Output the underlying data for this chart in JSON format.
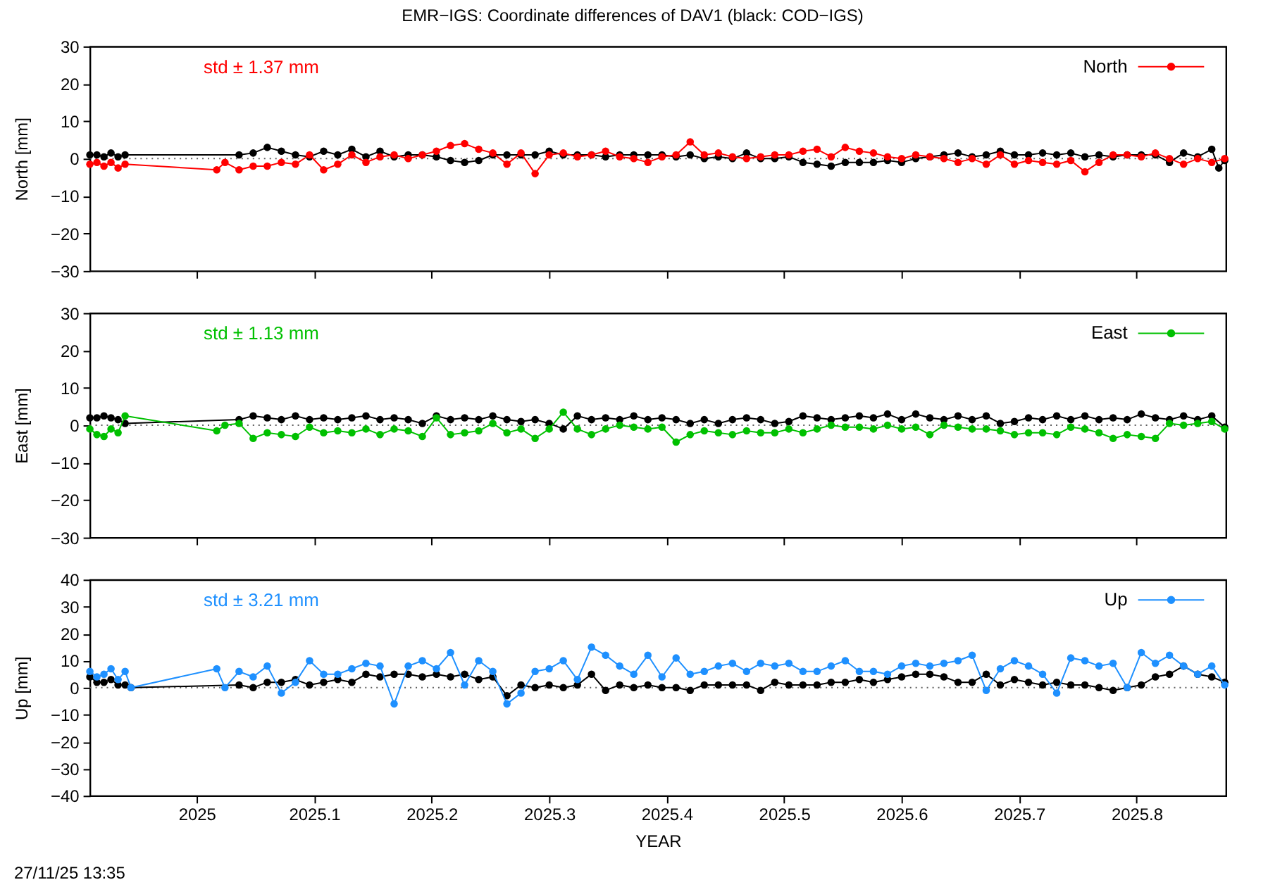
{
  "chart_data": [
    {
      "type": "line",
      "title": "EMR−IGS: Coordinate differences of DAV1 (black: COD−IGS)",
      "ylabel": "North [mm]",
      "xlim": [
        2024.909,
        2025.876
      ],
      "xticks": [
        2025,
        2025.1,
        2025.2,
        2025.3,
        2025.4,
        2025.5,
        2025.6,
        2025.7,
        2025.8
      ],
      "ylim": [
        -30,
        30
      ],
      "yticks": [
        -30,
        -20,
        -10,
        0,
        10,
        20,
        30
      ],
      "tick_labels": "y",
      "marker": "circle",
      "legend": "top right",
      "annotations": [
        "std ± 1.37 mm"
      ],
      "ref_lines": [
        {
          "axis": "y",
          "value": 0,
          "line_style": "dotted",
          "color": "#606060"
        }
      ],
      "series": [
        {
          "color": "#000000",
          "x": [
            2024.909,
            2024.915,
            2024.921,
            2024.927,
            2024.933,
            2024.939,
            2025.036,
            2025.048,
            2025.06,
            2025.072,
            2025.084,
            2025.096,
            2025.108,
            2025.12,
            2025.132,
            2025.144,
            2025.156,
            2025.168,
            2025.18,
            2025.192,
            2025.204,
            2025.216,
            2025.228,
            2025.24,
            2025.252,
            2025.264,
            2025.276,
            2025.288,
            2025.3,
            2025.312,
            2025.324,
            2025.336,
            2025.348,
            2025.36,
            2025.372,
            2025.384,
            2025.396,
            2025.408,
            2025.42,
            2025.432,
            2025.444,
            2025.456,
            2025.468,
            2025.48,
            2025.492,
            2025.504,
            2025.516,
            2025.528,
            2025.54,
            2025.552,
            2025.564,
            2025.576,
            2025.588,
            2025.6,
            2025.612,
            2025.624,
            2025.636,
            2025.648,
            2025.66,
            2025.672,
            2025.684,
            2025.696,
            2025.708,
            2025.72,
            2025.732,
            2025.744,
            2025.756,
            2025.768,
            2025.78,
            2025.792,
            2025.804,
            2025.816,
            2025.828,
            2025.84,
            2025.852,
            2025.864,
            2025.87,
            2025.875
          ],
          "values": [
            1,
            1,
            0.5,
            1.5,
            0.5,
            1,
            1,
            1.5,
            3,
            2,
            1,
            0.5,
            2,
            1,
            2.5,
            0.5,
            2,
            0.5,
            1,
            1,
            0.5,
            -0.5,
            -1,
            -0.5,
            1,
            1,
            1,
            1,
            2,
            1,
            1,
            1,
            0.5,
            1,
            1,
            1,
            1,
            0.5,
            1,
            0,
            0.5,
            0,
            1.5,
            0,
            0,
            0.5,
            -1,
            -1.5,
            -2,
            -1,
            -1,
            -1,
            -0.5,
            -1,
            0,
            0.5,
            1,
            1.5,
            0.5,
            1,
            2,
            1,
            1,
            1.5,
            1,
            1.5,
            0.5,
            1,
            0.5,
            1,
            1,
            1,
            -1,
            1.5,
            0.5,
            2.5,
            -2.5,
            -0.5
          ]
        },
        {
          "name": "North",
          "color": "#ff0000",
          "x": [
            2024.909,
            2024.915,
            2024.921,
            2024.927,
            2024.933,
            2024.939,
            2025.017,
            2025.024,
            2025.036,
            2025.048,
            2025.06,
            2025.072,
            2025.084,
            2025.096,
            2025.108,
            2025.12,
            2025.132,
            2025.144,
            2025.156,
            2025.168,
            2025.18,
            2025.192,
            2025.204,
            2025.216,
            2025.228,
            2025.24,
            2025.252,
            2025.264,
            2025.276,
            2025.288,
            2025.3,
            2025.312,
            2025.324,
            2025.336,
            2025.348,
            2025.36,
            2025.372,
            2025.384,
            2025.396,
            2025.408,
            2025.42,
            2025.432,
            2025.444,
            2025.456,
            2025.468,
            2025.48,
            2025.492,
            2025.504,
            2025.516,
            2025.528,
            2025.54,
            2025.552,
            2025.564,
            2025.576,
            2025.588,
            2025.6,
            2025.612,
            2025.624,
            2025.636,
            2025.648,
            2025.66,
            2025.672,
            2025.684,
            2025.696,
            2025.708,
            2025.72,
            2025.732,
            2025.744,
            2025.756,
            2025.768,
            2025.78,
            2025.792,
            2025.804,
            2025.816,
            2025.828,
            2025.84,
            2025.852,
            2025.864,
            2025.875
          ],
          "values": [
            -1.5,
            -1,
            -2,
            -1,
            -2.5,
            -1.5,
            -3,
            -1,
            -3,
            -2,
            -2,
            -1,
            -1.5,
            1,
            -3,
            -1.5,
            1,
            -1,
            0.5,
            1,
            0,
            1,
            2,
            3.5,
            4,
            2.5,
            1.5,
            -1.5,
            1.5,
            -4,
            1,
            1.5,
            0.5,
            1,
            2,
            0.5,
            0,
            -1,
            0.5,
            1,
            4.5,
            1,
            1.5,
            0.5,
            0,
            0.5,
            1,
            1,
            2,
            2.5,
            0.5,
            3,
            2,
            1.5,
            0.5,
            0,
            1,
            0.5,
            0,
            -1,
            0,
            -1.5,
            1,
            -1.5,
            -0.5,
            -1,
            -1.5,
            -0.5,
            -3.5,
            -1,
            1,
            1,
            0.5,
            1.5,
            0,
            -1.5,
            0,
            -1,
            0
          ]
        }
      ]
    },
    {
      "type": "line",
      "ylabel": "East [mm]",
      "xlim": [
        2024.909,
        2025.876
      ],
      "xticks": [
        2025,
        2025.1,
        2025.2,
        2025.3,
        2025.4,
        2025.5,
        2025.6,
        2025.7,
        2025.8
      ],
      "ylim": [
        -30,
        30
      ],
      "yticks": [
        -30,
        -20,
        -10,
        0,
        10,
        20,
        30
      ],
      "tick_labels": "y",
      "marker": "circle",
      "legend": "top right",
      "annotations": [
        "std ± 1.13 mm"
      ],
      "ref_lines": [
        {
          "axis": "y",
          "value": 0,
          "line_style": "dotted",
          "color": "#606060"
        }
      ],
      "series": [
        {
          "color": "#000000",
          "x": [
            2024.909,
            2024.915,
            2024.921,
            2024.927,
            2024.933,
            2024.939,
            2025.036,
            2025.048,
            2025.06,
            2025.072,
            2025.084,
            2025.096,
            2025.108,
            2025.12,
            2025.132,
            2025.144,
            2025.156,
            2025.168,
            2025.18,
            2025.192,
            2025.204,
            2025.216,
            2025.228,
            2025.24,
            2025.252,
            2025.264,
            2025.276,
            2025.288,
            2025.3,
            2025.312,
            2025.324,
            2025.336,
            2025.348,
            2025.36,
            2025.372,
            2025.384,
            2025.396,
            2025.408,
            2025.42,
            2025.432,
            2025.444,
            2025.456,
            2025.468,
            2025.48,
            2025.492,
            2025.504,
            2025.516,
            2025.528,
            2025.54,
            2025.552,
            2025.564,
            2025.576,
            2025.588,
            2025.6,
            2025.612,
            2025.624,
            2025.636,
            2025.648,
            2025.66,
            2025.672,
            2025.684,
            2025.696,
            2025.708,
            2025.72,
            2025.732,
            2025.744,
            2025.756,
            2025.768,
            2025.78,
            2025.792,
            2025.804,
            2025.816,
            2025.828,
            2025.84,
            2025.852,
            2025.864,
            2025.875
          ],
          "values": [
            2,
            2,
            2.5,
            2,
            1.5,
            0.5,
            1.5,
            2.5,
            2,
            1.5,
            2.5,
            1.5,
            2,
            1.5,
            2,
            2.5,
            1.5,
            2,
            1.5,
            0.5,
            2.5,
            1.5,
            2,
            1.5,
            2.5,
            1.5,
            1,
            1.5,
            0.5,
            -1,
            2.5,
            1.5,
            2,
            1.5,
            2.5,
            1.5,
            2,
            1.5,
            0.5,
            1.5,
            0.5,
            1.5,
            2,
            1.5,
            0.5,
            1,
            2.5,
            2,
            1.5,
            2,
            2.5,
            2,
            3,
            1.5,
            3,
            2,
            1.5,
            2.5,
            1.5,
            2.5,
            0.5,
            1,
            2,
            1.5,
            2.5,
            1.5,
            2.5,
            1.5,
            2,
            1.5,
            3,
            2,
            1.5,
            2.5,
            1.5,
            2.5,
            -0.5
          ]
        },
        {
          "name": "East",
          "color": "#00c000",
          "x": [
            2024.909,
            2024.915,
            2024.921,
            2024.927,
            2024.933,
            2024.939,
            2025.017,
            2025.024,
            2025.036,
            2025.048,
            2025.06,
            2025.072,
            2025.084,
            2025.096,
            2025.108,
            2025.12,
            2025.132,
            2025.144,
            2025.156,
            2025.168,
            2025.18,
            2025.192,
            2025.204,
            2025.216,
            2025.228,
            2025.24,
            2025.252,
            2025.264,
            2025.276,
            2025.288,
            2025.3,
            2025.312,
            2025.324,
            2025.336,
            2025.348,
            2025.36,
            2025.372,
            2025.384,
            2025.396,
            2025.408,
            2025.42,
            2025.432,
            2025.444,
            2025.456,
            2025.468,
            2025.48,
            2025.492,
            2025.504,
            2025.516,
            2025.528,
            2025.54,
            2025.552,
            2025.564,
            2025.576,
            2025.588,
            2025.6,
            2025.612,
            2025.624,
            2025.636,
            2025.648,
            2025.66,
            2025.672,
            2025.684,
            2025.696,
            2025.708,
            2025.72,
            2025.732,
            2025.744,
            2025.756,
            2025.768,
            2025.78,
            2025.792,
            2025.804,
            2025.816,
            2025.828,
            2025.84,
            2025.852,
            2025.864,
            2025.875
          ],
          "values": [
            -1,
            -2.5,
            -3,
            -1,
            -2,
            2.5,
            -1.5,
            0,
            0.5,
            -3.5,
            -2,
            -2.5,
            -3,
            -0.5,
            -2,
            -1.5,
            -2,
            -1,
            -2.5,
            -1,
            -1.5,
            -3,
            2,
            -2.5,
            -2,
            -1.5,
            0.5,
            -2,
            -1,
            -3.5,
            -1,
            3.5,
            -1,
            -2.5,
            -1,
            0,
            -0.5,
            -1,
            -0.5,
            -4.5,
            -2.5,
            -1.5,
            -2,
            -2.5,
            -1.5,
            -2,
            -2,
            -1,
            -2,
            -1,
            0,
            -0.5,
            -0.5,
            -1,
            0,
            -1,
            -0.5,
            -2.5,
            0,
            -0.5,
            -1,
            -1,
            -1.5,
            -2.5,
            -2,
            -2,
            -2.5,
            -0.5,
            -1,
            -2,
            -3.5,
            -2.5,
            -3,
            -3.5,
            0.5,
            0,
            0.5,
            1,
            -1
          ]
        }
      ]
    },
    {
      "type": "line",
      "xlabel": "YEAR",
      "ylabel": "Up [mm]",
      "xlim": [
        2024.909,
        2025.876
      ],
      "xticks": [
        2025,
        2025.1,
        2025.2,
        2025.3,
        2025.4,
        2025.5,
        2025.6,
        2025.7,
        2025.8
      ],
      "ylim": [
        -40,
        40
      ],
      "yticks": [
        -40,
        -30,
        -20,
        -10,
        0,
        10,
        20,
        30,
        40
      ],
      "marker": "circle",
      "legend": "top right",
      "annotations": [
        "std ± 3.21 mm",
        "27/11/25 13:35"
      ],
      "ref_lines": [
        {
          "axis": "y",
          "value": 0,
          "line_style": "dotted",
          "color": "#606060"
        }
      ],
      "series": [
        {
          "color": "#000000",
          "x": [
            2024.909,
            2024.915,
            2024.921,
            2024.927,
            2024.933,
            2024.939,
            2024.944,
            2025.036,
            2025.048,
            2025.06,
            2025.072,
            2025.084,
            2025.096,
            2025.108,
            2025.12,
            2025.132,
            2025.144,
            2025.156,
            2025.168,
            2025.18,
            2025.192,
            2025.204,
            2025.216,
            2025.228,
            2025.24,
            2025.252,
            2025.264,
            2025.276,
            2025.288,
            2025.3,
            2025.312,
            2025.324,
            2025.336,
            2025.348,
            2025.36,
            2025.372,
            2025.384,
            2025.396,
            2025.408,
            2025.42,
            2025.432,
            2025.444,
            2025.456,
            2025.468,
            2025.48,
            2025.492,
            2025.504,
            2025.516,
            2025.528,
            2025.54,
            2025.552,
            2025.564,
            2025.576,
            2025.588,
            2025.6,
            2025.612,
            2025.624,
            2025.636,
            2025.648,
            2025.66,
            2025.672,
            2025.684,
            2025.696,
            2025.708,
            2025.72,
            2025.732,
            2025.744,
            2025.756,
            2025.768,
            2025.78,
            2025.792,
            2025.804,
            2025.816,
            2025.828,
            2025.84,
            2025.852,
            2025.864,
            2025.875
          ],
          "values": [
            4,
            2,
            2,
            3,
            1,
            1,
            0,
            1,
            0,
            2,
            2,
            3,
            1,
            2,
            3,
            2,
            5,
            4,
            5,
            5,
            4,
            5,
            4,
            5,
            3,
            4,
            -3,
            1,
            0,
            1,
            0,
            1,
            5,
            -1,
            1,
            0,
            1,
            0,
            0,
            -1,
            1,
            1,
            1,
            1,
            -1,
            2,
            1,
            1,
            1,
            2,
            2,
            3,
            2,
            3,
            4,
            5,
            5,
            4,
            2,
            2,
            5,
            1,
            3,
            2,
            1,
            2,
            1,
            1,
            0,
            -1,
            0,
            1,
            4,
            5,
            8,
            5,
            4,
            2
          ]
        },
        {
          "name": "Up",
          "color": "#1e90ff",
          "x": [
            2024.909,
            2024.915,
            2024.921,
            2024.927,
            2024.933,
            2024.939,
            2024.944,
            2025.017,
            2025.024,
            2025.036,
            2025.048,
            2025.06,
            2025.072,
            2025.084,
            2025.096,
            2025.108,
            2025.12,
            2025.132,
            2025.144,
            2025.156,
            2025.168,
            2025.18,
            2025.192,
            2025.204,
            2025.216,
            2025.228,
            2025.24,
            2025.252,
            2025.264,
            2025.276,
            2025.288,
            2025.3,
            2025.312,
            2025.324,
            2025.336,
            2025.348,
            2025.36,
            2025.372,
            2025.384,
            2025.396,
            2025.408,
            2025.42,
            2025.432,
            2025.444,
            2025.456,
            2025.468,
            2025.48,
            2025.492,
            2025.504,
            2025.516,
            2025.528,
            2025.54,
            2025.552,
            2025.564,
            2025.576,
            2025.588,
            2025.6,
            2025.612,
            2025.624,
            2025.636,
            2025.648,
            2025.66,
            2025.672,
            2025.684,
            2025.696,
            2025.708,
            2025.72,
            2025.732,
            2025.744,
            2025.756,
            2025.768,
            2025.78,
            2025.792,
            2025.804,
            2025.816,
            2025.828,
            2025.84,
            2025.852,
            2025.864,
            2025.875
          ],
          "values": [
            6,
            4,
            5,
            7,
            3,
            6,
            0,
            7,
            0,
            6,
            4,
            8,
            -2,
            2,
            10,
            5,
            5,
            7,
            9,
            8,
            -6,
            8,
            10,
            7,
            13,
            1,
            10,
            6,
            -6,
            -2,
            6,
            7,
            10,
            3,
            15,
            12,
            8,
            5,
            12,
            4,
            11,
            5,
            6,
            8,
            9,
            6,
            9,
            8,
            9,
            6,
            6,
            8,
            10,
            6,
            6,
            5,
            8,
            9,
            8,
            9,
            10,
            12,
            -1,
            7,
            10,
            8,
            5,
            -2,
            11,
            10,
            8,
            9,
            0,
            13,
            9,
            12,
            8,
            5,
            8,
            1
          ]
        }
      ]
    }
  ]
}
